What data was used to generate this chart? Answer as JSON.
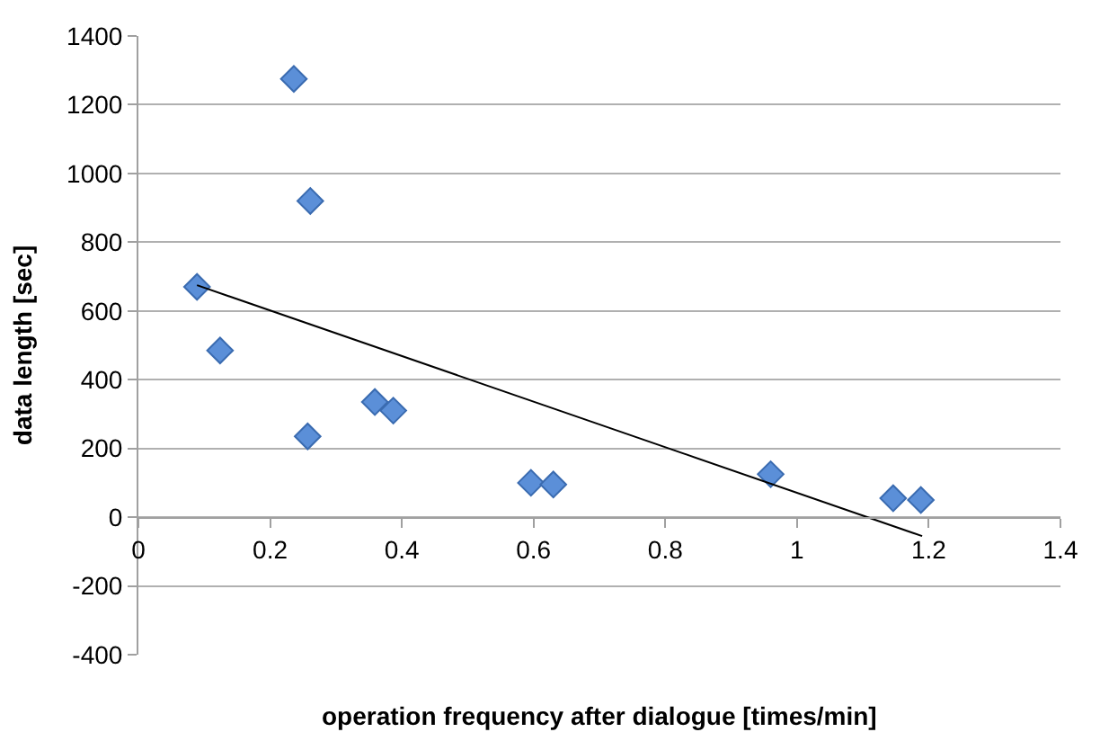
{
  "chart_data": {
    "type": "scatter",
    "xlabel": "operation frequency after dialogue [times/min]",
    "ylabel": "data length [sec]",
    "xlim": [
      0,
      1.4
    ],
    "xticks": [
      0,
      0.2,
      0.4,
      0.6,
      0.8,
      1,
      1.2,
      1.4
    ],
    "ylim": [
      -400,
      1400
    ],
    "yticks": [
      -400,
      -200,
      0,
      200,
      400,
      600,
      800,
      1000,
      1200,
      1400
    ],
    "grid": "y",
    "marker": "diamond",
    "series": [
      {
        "color": "#5b8fd8",
        "x": [
          0.236,
          0.261,
          0.089,
          0.124,
          0.359,
          0.387,
          0.257,
          0.596,
          0.63,
          0.96,
          1.146,
          1.188
        ],
        "values": [
          1275,
          920,
          670,
          485,
          335,
          310,
          235,
          100,
          95,
          125,
          55,
          50
        ]
      },
      {
        "type": "line",
        "marker": "none",
        "color": "#000000",
        "x": [
          0.089,
          1.19
        ],
        "values": [
          675,
          -55
        ]
      }
    ]
  }
}
